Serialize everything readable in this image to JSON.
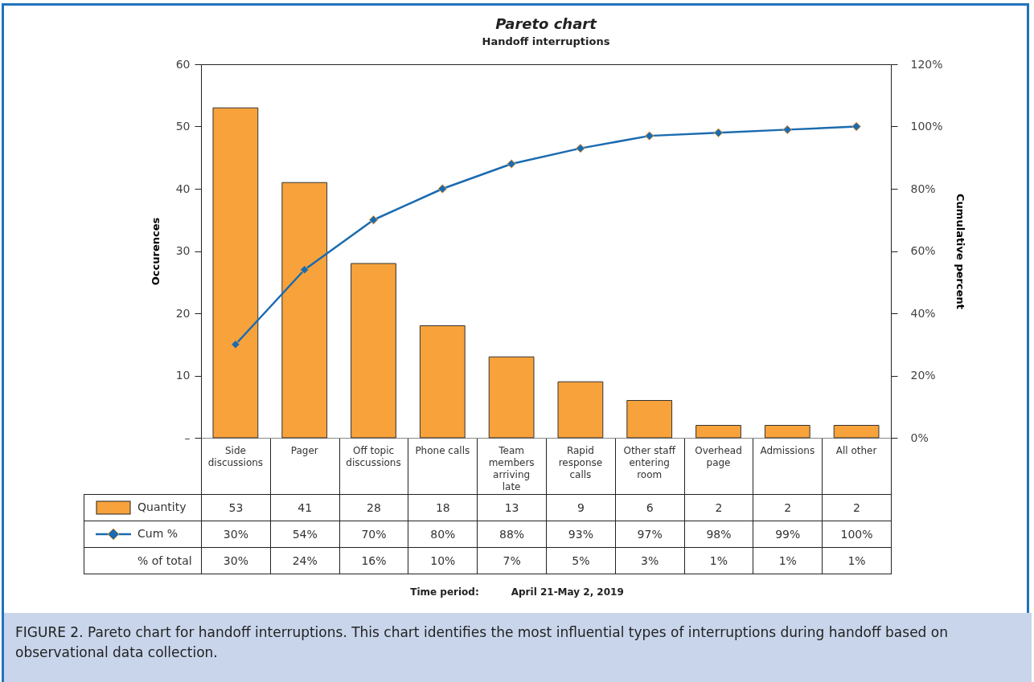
{
  "chart_data": {
    "type": "bar",
    "title": "Pareto chart",
    "subtitle": "Handoff interruptions",
    "ylabel": "Occurences",
    "y2label": "Cumulative percent",
    "categories": [
      "Side discussions",
      "Pager",
      "Off topic discussions",
      "Phone calls",
      "Team members arriving late",
      "Rapid response calls",
      "Other staff entering room",
      "Overhead page",
      "Admissions",
      "All other"
    ],
    "series": [
      {
        "name": "Quantity",
        "color": "#f7a23b",
        "values": [
          53,
          41,
          28,
          18,
          13,
          9,
          6,
          2,
          2,
          2
        ],
        "value_labels": [
          "53",
          "41",
          "28",
          "18",
          "13",
          "9",
          "6",
          "2",
          "2",
          "2"
        ]
      },
      {
        "name": "Cum %",
        "type": "line",
        "axis": "y2",
        "color": "#1a6bb0",
        "marker": "diamond",
        "values": [
          30,
          54,
          70,
          80,
          88,
          93,
          97,
          98,
          99,
          100
        ],
        "value_labels": [
          "30%",
          "54%",
          "70%",
          "80%",
          "88%",
          "93%",
          "97%",
          "98%",
          "99%",
          "100%"
        ]
      }
    ],
    "ylim": [
      0,
      60
    ],
    "yticks": [
      {
        "value": 0,
        "label": "–"
      },
      10,
      20,
      30,
      40,
      50,
      60
    ],
    "y2lim": [
      0,
      120
    ],
    "y2ticks": [
      {
        "value": 0,
        "label": "0%"
      },
      {
        "value": 20,
        "label": "20%"
      },
      {
        "value": 40,
        "label": "40%"
      },
      {
        "value": 60,
        "label": "60%"
      },
      {
        "value": 80,
        "label": "80%"
      },
      {
        "value": 100,
        "label": "100%"
      },
      {
        "value": 120,
        "label": "120%"
      }
    ],
    "legend": "bottom left",
    "annotations": [
      "% of total",
      "30%",
      "24%",
      "16%",
      "10%",
      "7%",
      "5%",
      "3%",
      "1%",
      "1%",
      "1%",
      "Time period:",
      "April 21-May 2, 2019",
      "FIGURE 2. Pareto chart for handoff interruptions. This chart identifies the most influential types of interruptions during handoff based on observational data collection."
    ]
  }
}
